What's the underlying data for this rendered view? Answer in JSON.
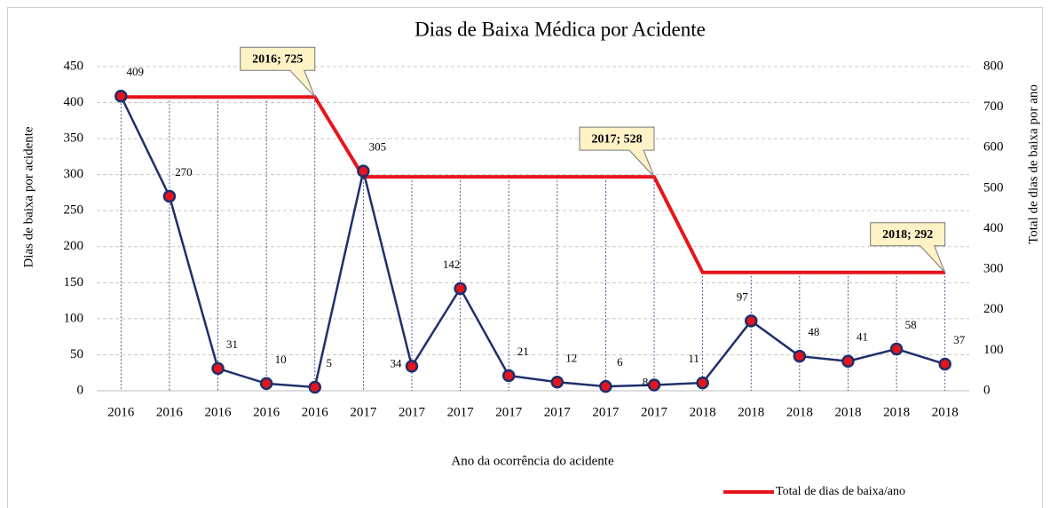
{
  "chart_data": {
    "type": "line",
    "title": "Dias de Baixa Médica por Acidente",
    "x_label": "Ano da ocorrência do acidente",
    "y_label": "Dias de baixa por acidente",
    "y2_label": "Total de dias de baixa por ano",
    "categories": [
      "2016",
      "2016",
      "2016",
      "2016",
      "2016",
      "2017",
      "2017",
      "2017",
      "2017",
      "2017",
      "2017",
      "2017",
      "2018",
      "2018",
      "2018",
      "2018",
      "2018",
      "2018"
    ],
    "series": [
      {
        "color": "#1f2f6b",
        "marker_color": "#e8141b",
        "values": [
          409,
          270,
          31,
          10,
          5,
          305,
          34,
          142,
          21,
          12,
          6,
          8,
          11,
          97,
          48,
          41,
          58,
          37
        ]
      },
      {
        "name": "Total de dias de baixa/ano",
        "color": "#e8141b",
        "axis": "y2",
        "values": [
          725,
          725,
          725,
          725,
          725,
          528,
          528,
          528,
          528,
          528,
          528,
          528,
          292,
          292,
          292,
          292,
          292,
          292
        ]
      }
    ],
    "annotations": [
      "2016; 725",
      "2017; 528",
      "2018; 292"
    ],
    "ylim": [
      0,
      450
    ],
    "yticks": [
      0,
      50,
      100,
      150,
      200,
      250,
      300,
      350,
      400,
      450
    ],
    "y2lim": [
      0,
      800
    ],
    "y2ticks": [
      0,
      100,
      200,
      300,
      400,
      500,
      600,
      700,
      800
    ],
    "grid": true,
    "legend": "bottom-right"
  }
}
